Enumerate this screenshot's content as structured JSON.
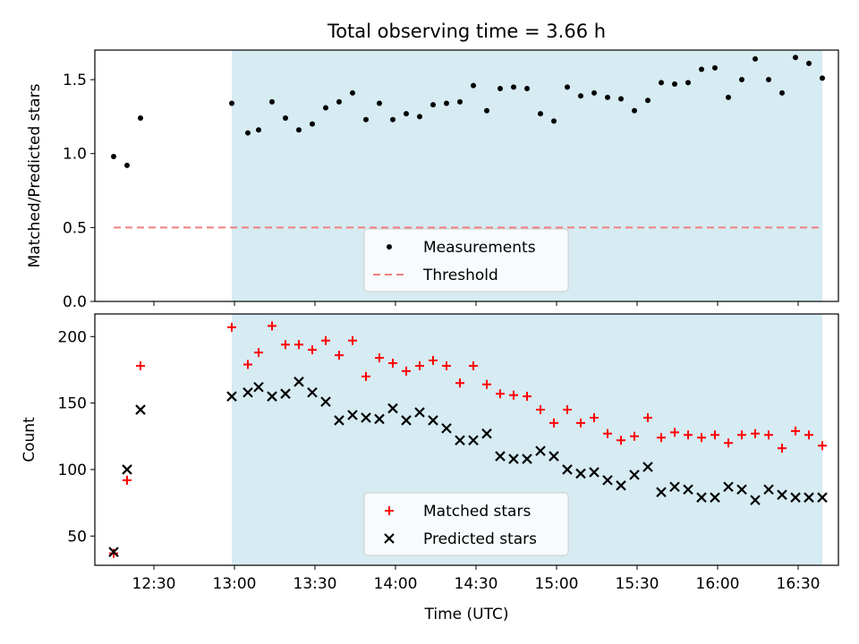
{
  "chart_data": [
    {
      "type": "scatter",
      "title": "Total observing time = 3.66 h",
      "ylabel": "Matched/Predicted stars",
      "xlabel": "",
      "xlim": [
        "12:08",
        "16:45"
      ],
      "ylim": [
        0,
        1.7
      ],
      "xticks": [
        "12:30",
        "13:00",
        "13:30",
        "14:00",
        "14:30",
        "15:00",
        "15:30",
        "16:00",
        "16:30"
      ],
      "yticks": [
        "0.0",
        "0.5",
        "1.0",
        "1.5"
      ],
      "shaded_interval": [
        "12:59",
        "16:39"
      ],
      "legend_position": "lower center",
      "series": [
        {
          "name": "Measurements",
          "marker": "dot",
          "color": "#000000",
          "x": [
            "12:15",
            "12:20",
            "12:25",
            "12:59",
            "13:05",
            "13:09",
            "13:14",
            "13:19",
            "13:24",
            "13:29",
            "13:34",
            "13:39",
            "13:44",
            "13:49",
            "13:54",
            "13:59",
            "14:04",
            "14:09",
            "14:14",
            "14:19",
            "14:24",
            "14:29",
            "14:34",
            "14:39",
            "14:44",
            "14:49",
            "14:54",
            "14:59",
            "15:04",
            "15:09",
            "15:14",
            "15:19",
            "15:24",
            "15:29",
            "15:34",
            "15:39",
            "15:44",
            "15:49",
            "15:54",
            "15:59",
            "16:04",
            "16:09",
            "16:14",
            "16:19",
            "16:24",
            "16:29",
            "16:34",
            "16:39"
          ],
          "y": [
            0.98,
            0.92,
            1.24,
            1.34,
            1.14,
            1.16,
            1.35,
            1.24,
            1.16,
            1.2,
            1.31,
            1.35,
            1.41,
            1.23,
            1.34,
            1.23,
            1.27,
            1.25,
            1.33,
            1.34,
            1.35,
            1.46,
            1.29,
            1.44,
            1.45,
            1.44,
            1.27,
            1.22,
            1.45,
            1.39,
            1.41,
            1.38,
            1.37,
            1.29,
            1.36,
            1.48,
            1.47,
            1.48,
            1.57,
            1.58,
            1.38,
            1.5,
            1.64,
            1.5,
            1.41,
            1.65,
            1.61,
            1.51
          ]
        },
        {
          "name": "Threshold",
          "marker": "dashed-line",
          "color": "#f08080",
          "x": [
            "12:15",
            "16:39"
          ],
          "y": [
            0.5,
            0.5
          ]
        }
      ]
    },
    {
      "type": "scatter",
      "title": "",
      "ylabel": "Count",
      "xlabel": "Time (UTC)",
      "xlim": [
        "12:08",
        "16:45"
      ],
      "ylim": [
        28,
        217
      ],
      "xticks": [
        "12:30",
        "13:00",
        "13:30",
        "14:00",
        "14:30",
        "15:00",
        "15:30",
        "16:00",
        "16:30"
      ],
      "yticks": [
        "50",
        "100",
        "150",
        "200"
      ],
      "shaded_interval": [
        "12:59",
        "16:39"
      ],
      "legend_position": "lower center",
      "series": [
        {
          "name": "Matched stars",
          "marker": "plus",
          "color": "#ff0000",
          "x": [
            "12:15",
            "12:20",
            "12:25",
            "12:59",
            "13:05",
            "13:09",
            "13:14",
            "13:19",
            "13:24",
            "13:29",
            "13:34",
            "13:39",
            "13:44",
            "13:49",
            "13:54",
            "13:59",
            "14:04",
            "14:09",
            "14:14",
            "14:19",
            "14:24",
            "14:29",
            "14:34",
            "14:39",
            "14:44",
            "14:49",
            "14:54",
            "14:59",
            "15:04",
            "15:09",
            "15:14",
            "15:19",
            "15:24",
            "15:29",
            "15:34",
            "15:39",
            "15:44",
            "15:49",
            "15:54",
            "15:59",
            "16:04",
            "16:09",
            "16:14",
            "16:19",
            "16:24",
            "16:29",
            "16:34",
            "16:39"
          ],
          "y": [
            37,
            92,
            178,
            207,
            179,
            188,
            208,
            194,
            194,
            190,
            197,
            186,
            197,
            170,
            184,
            180,
            174,
            178,
            182,
            178,
            165,
            178,
            164,
            157,
            156,
            155,
            145,
            135,
            145,
            135,
            139,
            127,
            122,
            125,
            139,
            124,
            128,
            126,
            124,
            126,
            120,
            126,
            127,
            126,
            116,
            129,
            126,
            118
          ]
        },
        {
          "name": "Predicted stars",
          "marker": "x",
          "color": "#000000",
          "x": [
            "12:15",
            "12:20",
            "12:25",
            "12:59",
            "13:05",
            "13:09",
            "13:14",
            "13:19",
            "13:24",
            "13:29",
            "13:34",
            "13:39",
            "13:44",
            "13:49",
            "13:54",
            "13:59",
            "14:04",
            "14:09",
            "14:14",
            "14:19",
            "14:24",
            "14:29",
            "14:34",
            "14:39",
            "14:44",
            "14:49",
            "14:54",
            "14:59",
            "15:04",
            "15:09",
            "15:14",
            "15:19",
            "15:24",
            "15:29",
            "15:34",
            "15:39",
            "15:44",
            "15:49",
            "15:54",
            "15:59",
            "16:04",
            "16:09",
            "16:14",
            "16:19",
            "16:24",
            "16:29",
            "16:34",
            "16:39"
          ],
          "y": [
            38,
            100,
            145,
            155,
            158,
            162,
            155,
            157,
            166,
            158,
            151,
            137,
            141,
            139,
            138,
            146,
            137,
            143,
            137,
            131,
            122,
            122,
            127,
            110,
            108,
            108,
            114,
            110,
            100,
            97,
            98,
            92,
            88,
            96,
            102,
            83,
            87,
            85,
            79,
            79,
            87,
            85,
            77,
            85,
            81,
            79,
            79,
            79
          ]
        }
      ]
    }
  ],
  "style": {
    "shade_color": "#add8e6",
    "threshold_color": "#f08080",
    "matched_color": "#ff0000",
    "predicted_color": "#000000"
  }
}
